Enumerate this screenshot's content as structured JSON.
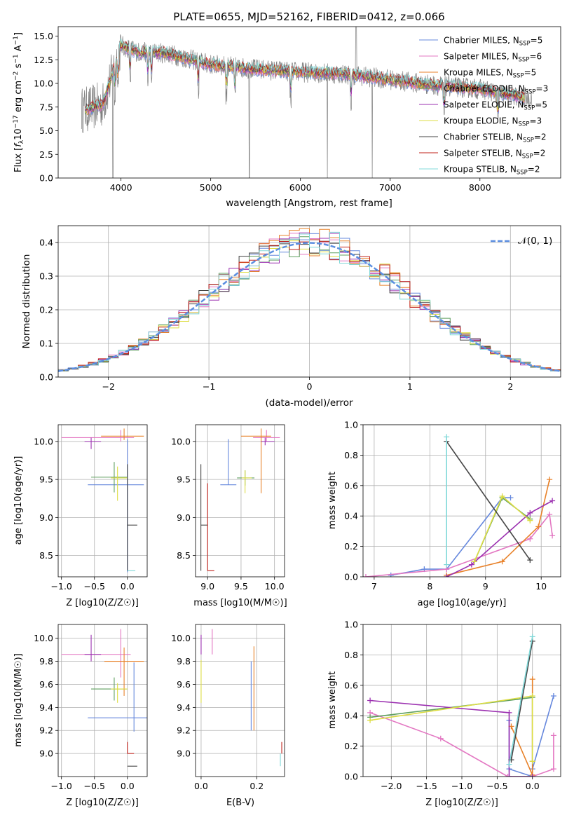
{
  "chart_data": [
    {
      "type": "line",
      "title": "PLATE=0655, MJD=52162, FIBERID=0412, z=0.066",
      "xlabel": "wavelength [Angstrom, rest frame]",
      "ylabel": "Flux [f_λ 10^-17 erg cm^-2 s^-1 A^-1]",
      "xlim": [
        3300,
        8900
      ],
      "ylim": [
        0,
        16
      ],
      "xticks": [
        "4000",
        "5000",
        "6000",
        "7000",
        "8000"
      ],
      "yticks": [
        "0.0",
        "2.5",
        "5.0",
        "7.5",
        "10.0",
        "12.5",
        "15.0"
      ],
      "legend_position": "upper-right",
      "grid": false,
      "series": [
        {
          "name": "Chabrier MILES, N_SSP=5",
          "color": "#6688dd"
        },
        {
          "name": "Salpeter MILES, N_SSP=6",
          "color": "#e377c2"
        },
        {
          "name": "Kroupa MILES, N_SSP=5",
          "color": "#e8822a"
        },
        {
          "name": "Chabrier ELODIE, N_SSP=3",
          "color": "#5f9f5f"
        },
        {
          "name": "Salpeter ELODIE, N_SSP=5",
          "color": "#9b30b0"
        },
        {
          "name": "Kroupa ELODIE, N_SSP=3",
          "color": "#dddd44"
        },
        {
          "name": "Chabrier STELIB, N_SSP=2",
          "color": "#444444"
        },
        {
          "name": "Salpeter STELIB, N_SSP=2",
          "color": "#c0201a"
        },
        {
          "name": "Kroupa STELIB, N_SSP=2",
          "color": "#80d8d8"
        }
      ],
      "continuum_x": [
        3600,
        3800,
        4000,
        4200,
        4500,
        5000,
        5500,
        6000,
        6500,
        7000,
        7500,
        8000,
        8500
      ],
      "continuum_y": [
        7.2,
        7.8,
        14.0,
        13.3,
        13.2,
        12.0,
        11.5,
        11.2,
        11.0,
        10.4,
        9.8,
        9.4,
        8.5
      ]
    },
    {
      "type": "bar",
      "xlabel": "(data-model)/error",
      "ylabel": "Normed distribution",
      "xlim": [
        -2.5,
        2.5
      ],
      "ylim": [
        0,
        0.45
      ],
      "xticks": [
        "−2",
        "−1",
        "0",
        "1",
        "2"
      ],
      "yticks": [
        "0.0",
        "0.1",
        "0.2",
        "0.3",
        "0.4"
      ],
      "grid": true,
      "legend": "𝒩(0, 1)",
      "legend_position": "upper-right",
      "bin_width": 0.1
    },
    {
      "type": "scatter",
      "xlabel": "Z [log10(Z/Z☉)]",
      "ylabel": "age [log10(age/yr)]",
      "xlim": [
        -1.05,
        0.3
      ],
      "ylim": [
        8.22,
        10.22
      ],
      "xticks": [
        "−1.0",
        "−0.5",
        "0.0"
      ],
      "yticks": [
        "8.5",
        "9.0",
        "9.5",
        "10.0"
      ],
      "grid": true,
      "points": [
        {
          "color": "#e377c2",
          "x": -0.1,
          "y": 10.05,
          "xerr": [
            0.9,
            0.2
          ],
          "yerr": [
            0.05,
            0.1
          ]
        },
        {
          "color": "#e8822a",
          "x": -0.05,
          "y": 10.07,
          "xerr": [
            0.35,
            0.3
          ],
          "yerr": [
            0.05,
            0.1
          ]
        },
        {
          "color": "#9b30b0",
          "x": -0.55,
          "y": 10.0,
          "xerr": [
            0.1,
            0.15
          ],
          "yerr": [
            0.1,
            0.05
          ]
        },
        {
          "color": "#6688dd",
          "x": 0.0,
          "y": 9.43,
          "xerr": [
            0.6,
            0.25
          ],
          "yerr": [
            1.15,
            0.6
          ]
        },
        {
          "color": "#5f9f5f",
          "x": -0.2,
          "y": 9.53,
          "xerr": [
            0.35,
            0.2
          ],
          "yerr": [
            0.2,
            0.2
          ]
        },
        {
          "color": "#dddd44",
          "x": -0.15,
          "y": 9.52,
          "xerr": [
            0.1,
            0.15
          ],
          "yerr": [
            0.3,
            0.15
          ]
        },
        {
          "color": "#444444",
          "x": 0.0,
          "y": 8.9,
          "xerr": [
            0.0,
            0.15
          ],
          "yerr": [
            0.6,
            0.8
          ]
        },
        {
          "color": "#80d8d8",
          "x": 0.0,
          "y": 8.3,
          "xerr": [
            0.0,
            0.12
          ],
          "yerr": [
            0.0,
            0.0
          ]
        }
      ]
    },
    {
      "type": "scatter",
      "xlabel": "mass [log10(M/M☉)]",
      "ylabel": "",
      "xlim": [
        8.82,
        10.15
      ],
      "ylim": [
        8.22,
        10.22
      ],
      "xticks": [
        "9.0",
        "9.5",
        "10.0"
      ],
      "yticks": [
        "8.5",
        "9.0",
        "9.5",
        "10.0"
      ],
      "grid": true,
      "points": [
        {
          "color": "#e377c2",
          "x": 9.88,
          "y": 10.05,
          "xerr": [
            0.2,
            0.2
          ],
          "yerr": [
            0.05,
            0.1
          ]
        },
        {
          "color": "#e8822a",
          "x": 9.8,
          "y": 10.07,
          "xerr": [
            0.3,
            0.15
          ],
          "yerr": [
            0.75,
            0.1
          ]
        },
        {
          "color": "#9b30b0",
          "x": 9.86,
          "y": 10.0,
          "xerr": [
            0.06,
            0.14
          ],
          "yerr": [
            0.05,
            0.05
          ]
        },
        {
          "color": "#6688dd",
          "x": 9.31,
          "y": 9.43,
          "xerr": [
            0.12,
            0.12
          ],
          "yerr": [
            0.0,
            0.6
          ]
        },
        {
          "color": "#5f9f5f",
          "x": 9.56,
          "y": 9.52,
          "xerr": [
            0.12,
            0.14
          ],
          "yerr": [
            0.1,
            0.1
          ]
        },
        {
          "color": "#dddd44",
          "x": 9.56,
          "y": 9.52,
          "xerr": [
            0.05,
            0.1
          ],
          "yerr": [
            0.2,
            0.1
          ]
        },
        {
          "color": "#444444",
          "x": 8.9,
          "y": 8.9,
          "xerr": [
            0.0,
            0.1
          ],
          "yerr": [
            0.6,
            0.8
          ]
        },
        {
          "color": "#c0201a",
          "x": 9.0,
          "y": 8.3,
          "xerr": [
            0.0,
            0.1
          ],
          "yerr": [
            0.0,
            1.15
          ]
        }
      ]
    },
    {
      "type": "line",
      "xlabel": "age [log10(age/yr)]",
      "ylabel": "mass weight",
      "xlim": [
        6.8,
        10.35
      ],
      "ylim": [
        0,
        1.0
      ],
      "xticks": [
        "7",
        "8",
        "9",
        "10"
      ],
      "yticks": [
        "0.0",
        "0.2",
        "0.4",
        "0.6",
        "0.8",
        "1.0"
      ],
      "grid": true,
      "series": [
        {
          "color": "#6688dd",
          "points": [
            [
              7.3,
              0.01
            ],
            [
              7.9,
              0.05
            ],
            [
              8.3,
              0.05
            ],
            [
              9.3,
              0.52
            ],
            [
              9.45,
              0.52
            ]
          ]
        },
        {
          "color": "#e377c2",
          "points": [
            [
              6.85,
              0.0
            ],
            [
              8.3,
              0.05
            ],
            [
              9.8,
              0.25
            ],
            [
              10.15,
              0.41
            ],
            [
              10.2,
              0.27
            ]
          ]
        },
        {
          "color": "#e8822a",
          "points": [
            [
              8.3,
              0.01
            ],
            [
              9.3,
              0.1
            ],
            [
              9.95,
              0.33
            ],
            [
              10.15,
              0.64
            ]
          ]
        },
        {
          "color": "#5f9f5f",
          "points": [
            [
              8.8,
              0.1
            ],
            [
              9.3,
              0.52
            ],
            [
              9.8,
              0.38
            ]
          ]
        },
        {
          "color": "#9b30b0",
          "points": [
            [
              8.3,
              0.0
            ],
            [
              8.75,
              0.08
            ],
            [
              9.8,
              0.42
            ],
            [
              10.2,
              0.5
            ]
          ]
        },
        {
          "color": "#dddd44",
          "points": [
            [
              8.8,
              0.1
            ],
            [
              9.3,
              0.53
            ],
            [
              9.8,
              0.37
            ]
          ]
        },
        {
          "color": "#444444",
          "points": [
            [
              8.3,
              0.89
            ],
            [
              9.8,
              0.11
            ]
          ]
        },
        {
          "color": "#80d8d8",
          "points": [
            [
              8.3,
              0.92
            ],
            [
              8.3,
              0.08
            ]
          ]
        }
      ]
    },
    {
      "type": "scatter",
      "xlabel": "Z [log10(Z/Z☉)]",
      "ylabel": "mass [log10(M/M☉)]",
      "xlim": [
        -1.05,
        0.3
      ],
      "ylim": [
        8.8,
        10.12
      ],
      "xticks": [
        "−1.0",
        "−0.5",
        "0.0"
      ],
      "yticks": [
        "9.0",
        "9.2",
        "9.4",
        "9.6",
        "9.8",
        "10.0"
      ],
      "grid": true,
      "points": [
        {
          "color": "#e377c2",
          "x": -0.1,
          "y": 9.86,
          "xerr": [
            0.9,
            0.15
          ],
          "yerr": [
            0.2,
            0.22
          ]
        },
        {
          "color": "#e8822a",
          "x": -0.05,
          "y": 9.8,
          "xerr": [
            0.3,
            0.3
          ],
          "yerr": [
            0.3,
            0.12
          ]
        },
        {
          "color": "#9b30b0",
          "x": -0.55,
          "y": 9.86,
          "xerr": [
            0.1,
            0.15
          ],
          "yerr": [
            0.06,
            0.17
          ]
        },
        {
          "color": "#6688dd",
          "x": 0.1,
          "y": 9.31,
          "xerr": [
            0.7,
            0.2
          ],
          "yerr": [
            0.12,
            0.48
          ]
        },
        {
          "color": "#5f9f5f",
          "x": -0.2,
          "y": 9.56,
          "xerr": [
            0.35,
            0.2
          ],
          "yerr": [
            0.1,
            0.1
          ]
        },
        {
          "color": "#dddd44",
          "x": -0.15,
          "y": 9.56,
          "xerr": [
            0.1,
            0.15
          ],
          "yerr": [
            0.12,
            0.05
          ]
        },
        {
          "color": "#444444",
          "x": 0.0,
          "y": 8.89,
          "xerr": [
            0.0,
            0.15
          ],
          "yerr": [
            0.0,
            0.0
          ]
        },
        {
          "color": "#c0201a",
          "x": 0.0,
          "y": 9.0,
          "xerr": [
            0.0,
            0.1
          ],
          "yerr": [
            0.0,
            0.1
          ]
        }
      ]
    },
    {
      "type": "scatter",
      "xlabel": "E(B-V)",
      "ylabel": "",
      "xlim": [
        -0.02,
        0.3
      ],
      "ylim": [
        8.8,
        10.12
      ],
      "xticks": [
        "0.0",
        "0.2"
      ],
      "yticks": [
        "9.0",
        "9.2",
        "9.4",
        "9.6",
        "9.8",
        "10.0"
      ],
      "grid": true,
      "points": [
        {
          "color": "#9b30b0",
          "x": 0.0,
          "y": 9.86,
          "yerr": [
            0.0,
            0.17
          ]
        },
        {
          "color": "#dddd44",
          "x": 0.0,
          "y": 9.56,
          "yerr": [
            0.12,
            0.25
          ]
        },
        {
          "color": "#e377c2",
          "x": 0.04,
          "y": 9.86,
          "yerr": [
            0.0,
            0.22
          ]
        },
        {
          "color": "#6688dd",
          "x": 0.18,
          "y": 9.5,
          "yerr": [
            0.3,
            0.3
          ]
        },
        {
          "color": "#e8822a",
          "x": 0.19,
          "y": 9.5,
          "yerr": [
            0.3,
            0.43
          ]
        },
        {
          "color": "#c0201a",
          "x": 0.29,
          "y": 9.05,
          "yerr": [
            0.05,
            0.05
          ]
        },
        {
          "color": "#80d8d8",
          "x": 0.285,
          "y": 8.95,
          "yerr": [
            0.06,
            0.05
          ]
        }
      ]
    },
    {
      "type": "line",
      "xlabel": "Z [log10(Z/Z☉)]",
      "ylabel": "mass weight",
      "xlim": [
        -2.4,
        0.4
      ],
      "ylim": [
        0,
        1.0
      ],
      "xticks": [
        "−2.0",
        "−1.5",
        "−1.0",
        "−0.5",
        "0.0"
      ],
      "yticks": [
        "0.0",
        "0.2",
        "0.4",
        "0.6",
        "0.8",
        "1.0"
      ],
      "grid": true,
      "series": [
        {
          "color": "#6688dd",
          "points": [
            [
              -0.33,
              0.37
            ],
            [
              -0.33,
              0.05
            ],
            [
              0.0,
              0.0
            ],
            [
              0.0,
              0.05
            ],
            [
              0.3,
              0.53
            ]
          ]
        },
        {
          "color": "#e377c2",
          "points": [
            [
              -2.3,
              0.42
            ],
            [
              -1.3,
              0.25
            ],
            [
              -0.35,
              0.0
            ],
            [
              0.0,
              0.0
            ],
            [
              0.3,
              0.05
            ],
            [
              0.3,
              0.27
            ]
          ]
        },
        {
          "color": "#e8822a",
          "points": [
            [
              -0.3,
              0.33
            ],
            [
              0.0,
              0.01
            ],
            [
              0.0,
              0.64
            ]
          ]
        },
        {
          "color": "#5f9f5f",
          "points": [
            [
              -2.3,
              0.39
            ],
            [
              0.0,
              0.52
            ],
            [
              0.0,
              0.1
            ]
          ]
        },
        {
          "color": "#9b30b0",
          "points": [
            [
              -2.3,
              0.5
            ],
            [
              -0.33,
              0.42
            ],
            [
              -0.33,
              0.0
            ],
            [
              0.0,
              0.0
            ]
          ]
        },
        {
          "color": "#dddd44",
          "points": [
            [
              -2.3,
              0.37
            ],
            [
              0.0,
              0.53
            ],
            [
              0.0,
              0.1
            ]
          ]
        },
        {
          "color": "#444444",
          "points": [
            [
              -0.3,
              0.11
            ],
            [
              0.0,
              0.89
            ]
          ]
        },
        {
          "color": "#80d8d8",
          "points": [
            [
              -0.33,
              0.08
            ],
            [
              0.0,
              0.92
            ]
          ]
        }
      ]
    }
  ]
}
